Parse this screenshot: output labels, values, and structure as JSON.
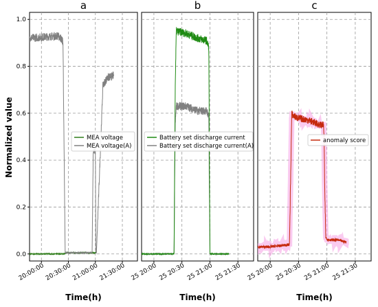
{
  "chart_data": [
    {
      "type": "line",
      "title": "a",
      "xlabel": "Time(h)",
      "ylabel": "Normalized value",
      "ylim": [
        -0.03,
        1.03
      ],
      "x_ticks": [
        "20:00:00",
        "20:30:00",
        "21:00:00",
        "21:30:00"
      ],
      "y_ticks": [
        "0.0",
        "0.2",
        "0.4",
        "0.6",
        "0.8",
        "1.0"
      ],
      "grid": true,
      "legend_position": "center-right",
      "series": [
        {
          "name": "MEA voltage",
          "color": "#2f7d1a",
          "x": [
            0.0,
            0.31,
            0.32,
            0.34,
            0.58,
            0.62
          ],
          "y": [
            0.0,
            0.0,
            0.0,
            0.005,
            0.005,
            0.005
          ]
        },
        {
          "name": "MEA voltage(A)",
          "color": "#808080",
          "x": [
            0.0,
            0.26,
            0.29,
            0.3,
            0.305,
            0.31,
            0.32,
            0.33,
            0.58,
            0.59,
            0.6,
            0.61,
            0.615,
            0.62,
            0.68,
            0.72,
            0.78
          ],
          "y": [
            0.92,
            0.93,
            0.92,
            0.91,
            0.91,
            0.9,
            0.44,
            0.005,
            0.005,
            0.44,
            0.44,
            0.44,
            0.005,
            0.005,
            0.72,
            0.75,
            0.76
          ]
        }
      ]
    },
    {
      "type": "line",
      "title": "b",
      "xlabel": "Time(h)",
      "x_ticks": [
        "25 20:00",
        "25 20:30",
        "25 21:00",
        "25 21:30"
      ],
      "ylim": [
        -0.03,
        1.03
      ],
      "grid": true,
      "legend_position": "center",
      "series": [
        {
          "name": "Battery set discharge current",
          "color": "#1e8a12",
          "x": [
            0.0,
            0.29,
            0.3,
            0.31,
            0.4,
            0.5,
            0.58,
            0.6,
            0.61,
            0.62,
            0.78
          ],
          "y": [
            0.0,
            0.0,
            0.7,
            0.95,
            0.94,
            0.92,
            0.91,
            0.88,
            0.0,
            0.0,
            0.0
          ]
        },
        {
          "name": "Battery set discharge current(A)",
          "color": "#808080",
          "x": [
            0.0,
            0.29,
            0.3,
            0.31,
            0.4,
            0.5,
            0.58,
            0.6,
            0.61,
            0.62,
            0.78
          ],
          "y": [
            0.0,
            0.0,
            0.55,
            0.63,
            0.63,
            0.61,
            0.61,
            0.59,
            0.0,
            0.0,
            0.0
          ]
        }
      ]
    },
    {
      "type": "line",
      "title": "c",
      "xlabel": "Time(h)",
      "x_ticks": [
        "25 20:00",
        "25 20:30",
        "25 21:00",
        "25 21:30"
      ],
      "ylim": [
        -0.03,
        1.03
      ],
      "grid": true,
      "legend_position": "center-right",
      "series": [
        {
          "name": "anomaly score",
          "color": "#c62a0e",
          "x": [
            0.0,
            0.1,
            0.2,
            0.28,
            0.3,
            0.31,
            0.35,
            0.45,
            0.55,
            0.58,
            0.585,
            0.59,
            0.6,
            0.62,
            0.7,
            0.78
          ],
          "y": [
            0.03,
            0.03,
            0.035,
            0.04,
            0.6,
            0.59,
            0.58,
            0.57,
            0.55,
            0.55,
            0.5,
            0.3,
            0.07,
            0.06,
            0.06,
            0.05
          ]
        }
      ]
    }
  ]
}
